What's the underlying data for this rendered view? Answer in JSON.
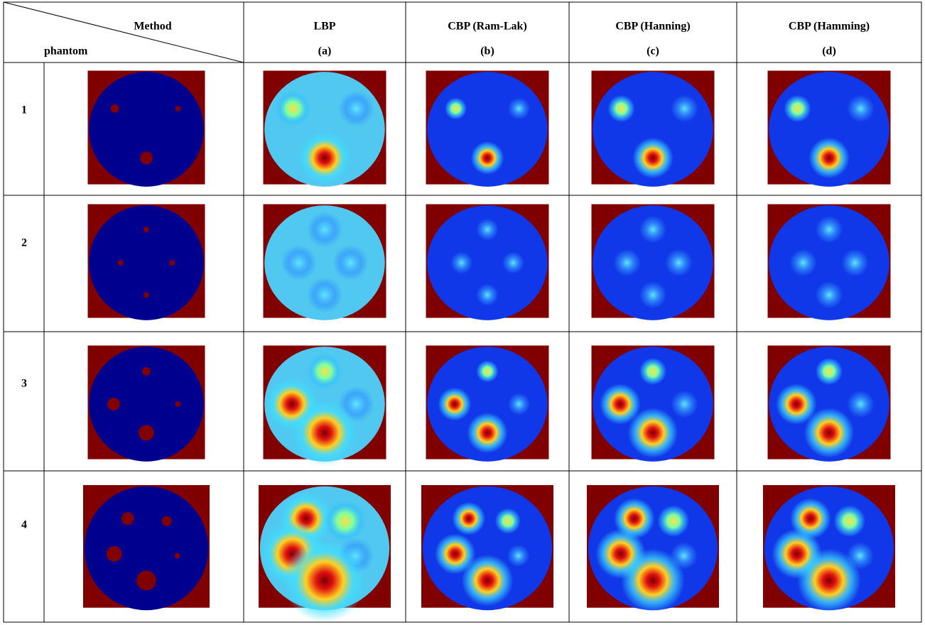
{
  "header": {
    "method": "Method",
    "phantom": "phantom"
  },
  "columns": [
    {
      "name": "LBP",
      "label": "(a)"
    },
    {
      "name": "CBP (Ram-Lak)",
      "label": "(b)"
    },
    {
      "name": "CBP (Hanning)",
      "label": "(c)"
    },
    {
      "name": "CBP (Hamming)",
      "label": "(d)"
    }
  ],
  "rows": [
    "1",
    "2",
    "3",
    "4"
  ]
}
